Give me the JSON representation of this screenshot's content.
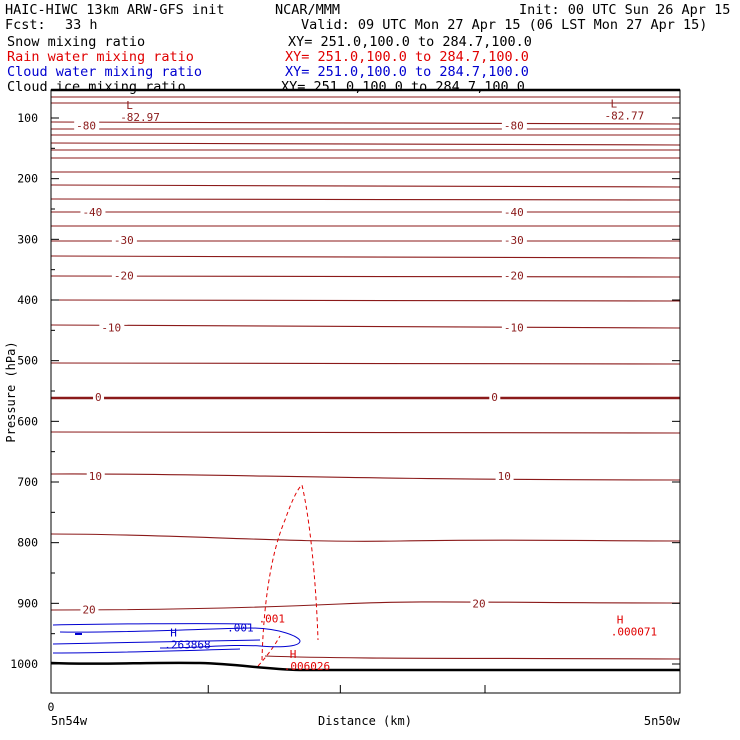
{
  "header": {
    "title_left": "HAIC-HIWC 13km ARW-GFS init",
    "org": "NCAR/MMM",
    "init": "Init: 00 UTC Sun 26 Apr 15",
    "fcst_label": "Fcst:",
    "fcst_value": "33 h",
    "valid": "Valid: 09 UTC Mon 27 Apr 15 (06 LST Mon 27 Apr 15)"
  },
  "legend": [
    {
      "label": "Snow mixing ratio",
      "xy": "XY= 251.0,100.0 to 284.7,100.0",
      "color": "#000000"
    },
    {
      "label": "Rain water mixing ratio",
      "xy": "XY= 251.0,100.0 to 284.7,100.0",
      "color": "#e00000"
    },
    {
      "label": "Cloud water mixing ratio",
      "xy": "XY= 251.0,100.0 to 284.7,100.0",
      "color": "#0000d0"
    },
    {
      "label": "Cloud ice mixing ratio",
      "xy": "XY= 251.0,100.0 to 284.7,100.0",
      "color": "#000000"
    }
  ],
  "colors": {
    "temperature": "#8b1a1a",
    "rain": "#e00000",
    "cloud": "#0000d0",
    "terrain": "#000000"
  },
  "chart_data": {
    "type": "cross-section",
    "xlabel": "Distance (km)",
    "ylabel": "Pressure (hPa)",
    "ylim": [
      1050,
      70
    ],
    "y_ticks": [
      100,
      200,
      300,
      400,
      500,
      600,
      700,
      800,
      900,
      1000
    ],
    "x_ticks": [
      "0"
    ],
    "x_start_label": "5n54w",
    "x_end_label": "5n50w",
    "isotherm_labels": [
      {
        "value": "-80",
        "x_frac": 0.04,
        "p": 112
      },
      {
        "value": "-80",
        "x_frac": 0.72,
        "p": 112
      },
      {
        "value": "-40",
        "x_frac": 0.05,
        "p": 255
      },
      {
        "value": "-40",
        "x_frac": 0.72,
        "p": 255
      },
      {
        "value": "-30",
        "x_frac": 0.1,
        "p": 301
      },
      {
        "value": "-30",
        "x_frac": 0.72,
        "p": 301
      },
      {
        "value": "-20",
        "x_frac": 0.1,
        "p": 360
      },
      {
        "value": "-20",
        "x_frac": 0.72,
        "p": 360
      },
      {
        "value": "-10",
        "x_frac": 0.08,
        "p": 445
      },
      {
        "value": "-10",
        "x_frac": 0.72,
        "p": 445
      },
      {
        "value": "0",
        "x_frac": 0.07,
        "p": 560
      },
      {
        "value": "0",
        "x_frac": 0.7,
        "p": 560
      },
      {
        "value": "10",
        "x_frac": 0.06,
        "p": 690
      },
      {
        "value": "10",
        "x_frac": 0.71,
        "p": 690
      },
      {
        "value": "20",
        "x_frac": 0.05,
        "p": 910
      },
      {
        "value": "20",
        "x_frac": 0.67,
        "p": 900
      }
    ],
    "extrema": [
      {
        "type": "L",
        "value": "-82.97",
        "x_frac": 0.11,
        "p": 85,
        "color": "temperature"
      },
      {
        "type": "L",
        "value": "-82.77",
        "x_frac": 0.88,
        "p": 83,
        "color": "temperature"
      },
      {
        "type": "H",
        "value": ".000071",
        "x_frac": 0.89,
        "p": 933,
        "color": "rain"
      },
      {
        "type": "H",
        "value": ".263868",
        "x_frac": 0.18,
        "p": 955,
        "color": "cloud"
      },
      {
        "type": "H",
        "value": ".006026",
        "x_frac": 0.37,
        "p": 990,
        "color": "rain"
      }
    ],
    "contour_labels": [
      {
        "value": ".001",
        "x_frac": 0.33,
        "p": 925,
        "color": "rain"
      },
      {
        "value": ".001",
        "x_frac": 0.28,
        "p": 940,
        "color": "cloud"
      }
    ]
  },
  "icons": {
    "high": "H",
    "low": "L"
  }
}
